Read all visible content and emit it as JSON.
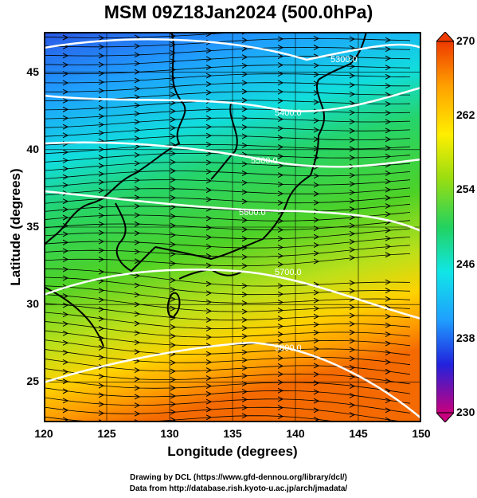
{
  "title": "MSM 09Z18Jan2024 (500.0hPa)",
  "xlabel": "Longitude (degrees)",
  "ylabel": "Latitude  (degrees)",
  "credits": [
    "Drawing by DCL (https://www.gfd-dennou.org/library/dcl/)",
    "Data from http://database.rish.kyoto-u.ac.jp/arch/jmadata/"
  ],
  "chart_data": {
    "type": "heatmap",
    "title": "MSM 09Z18Jan2024 (500.0hPa)",
    "xlabel": "Longitude (degrees)",
    "ylabel": "Latitude  (degrees)",
    "xlim": [
      120,
      150
    ],
    "ylim": [
      22.4,
      47.6
    ],
    "x_ticks": [
      "120",
      "125",
      "130",
      "135",
      "140",
      "145",
      "150"
    ],
    "y_ticks": [
      "25",
      "30",
      "35",
      "40",
      "45"
    ],
    "colorbar": {
      "min": 230,
      "max": 270,
      "labels": [
        "270",
        "262",
        "254",
        "246",
        "238",
        "230"
      ],
      "colors": [
        "#c8007d",
        "#2222dd",
        "#1f9fff",
        "#11e6e6",
        "#22d25f",
        "#99dd11",
        "#ffee00",
        "#ffa000",
        "#ee3a00"
      ]
    },
    "contours": [
      {
        "label": "5300.0"
      },
      {
        "label": "5400.0"
      },
      {
        "label": "5500.0"
      },
      {
        "label": "5600.0"
      },
      {
        "label": "5700.0"
      },
      {
        "label": "5800.0"
      }
    ],
    "wind_field": "streamlines with arrows, predominantly westerly flow"
  }
}
